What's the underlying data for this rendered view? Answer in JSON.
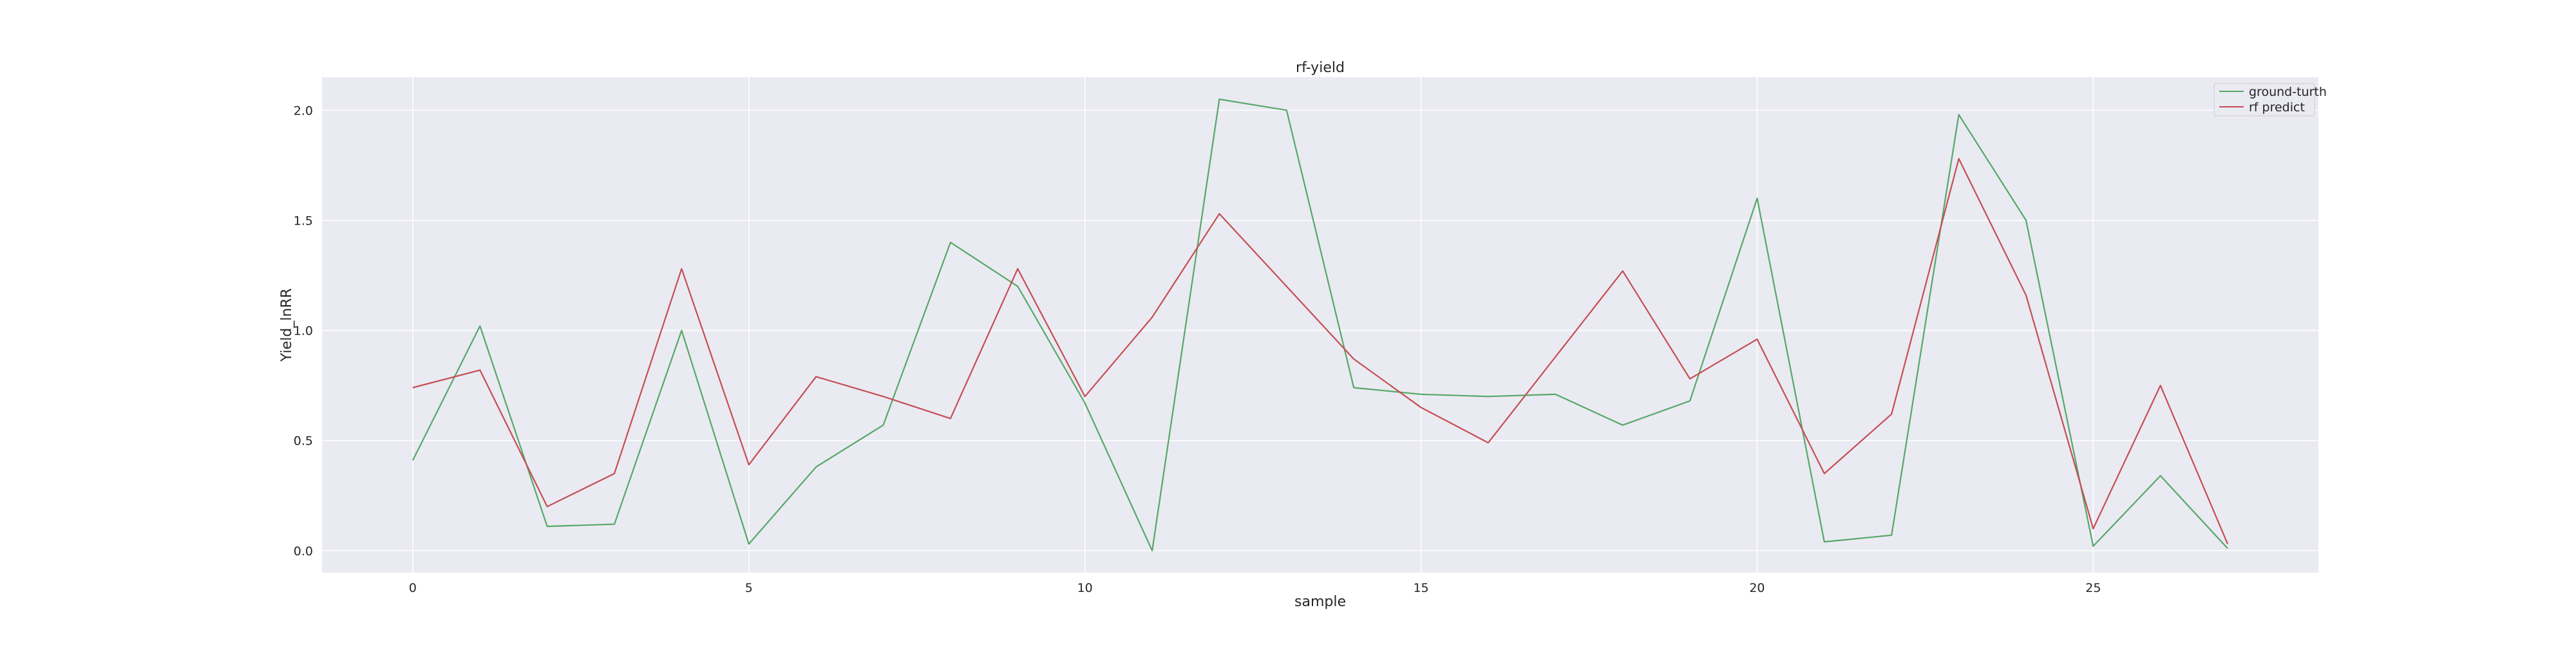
{
  "chart_data": {
    "type": "line",
    "title": "rf-yield",
    "xlabel": "sample",
    "ylabel": "Yield_lnRR",
    "xlim": [
      -1.35,
      28.35
    ],
    "ylim": [
      -0.1,
      2.15
    ],
    "xticks": [
      0,
      5,
      10,
      15,
      20,
      25
    ],
    "yticks": [
      0.0,
      0.5,
      1.0,
      1.5,
      2.0
    ],
    "xtick_labels": [
      "0",
      "5",
      "10",
      "15",
      "20",
      "25"
    ],
    "ytick_labels": [
      "0.0",
      "0.5",
      "1.0",
      "1.5",
      "2.0"
    ],
    "grid": true,
    "legend_position": "top-right",
    "background": "#eaeaf2",
    "x": [
      0,
      1,
      2,
      3,
      4,
      5,
      6,
      7,
      8,
      9,
      10,
      11,
      12,
      13,
      14,
      15,
      16,
      17,
      18,
      19,
      20,
      21,
      22,
      23,
      24,
      25,
      26,
      27
    ],
    "series": [
      {
        "name": "ground-turth",
        "color": "#55a868",
        "values": [
          0.41,
          1.02,
          0.11,
          0.12,
          1.0,
          0.03,
          0.38,
          0.57,
          1.4,
          1.2,
          0.67,
          0.0,
          2.05,
          2.0,
          0.74,
          0.71,
          0.7,
          0.71,
          0.57,
          0.68,
          1.6,
          0.04,
          0.07,
          1.98,
          1.5,
          0.02,
          0.34,
          0.01
        ]
      },
      {
        "name": "rf predict",
        "color": "#c44e52",
        "values": [
          0.74,
          0.82,
          0.2,
          0.35,
          1.28,
          0.39,
          0.79,
          0.7,
          0.6,
          1.28,
          0.7,
          1.06,
          1.53,
          1.2,
          0.87,
          0.65,
          0.49,
          0.88,
          1.27,
          0.78,
          0.96,
          0.35,
          0.62,
          1.78,
          1.16,
          0.1,
          0.75,
          0.03
        ]
      }
    ]
  }
}
